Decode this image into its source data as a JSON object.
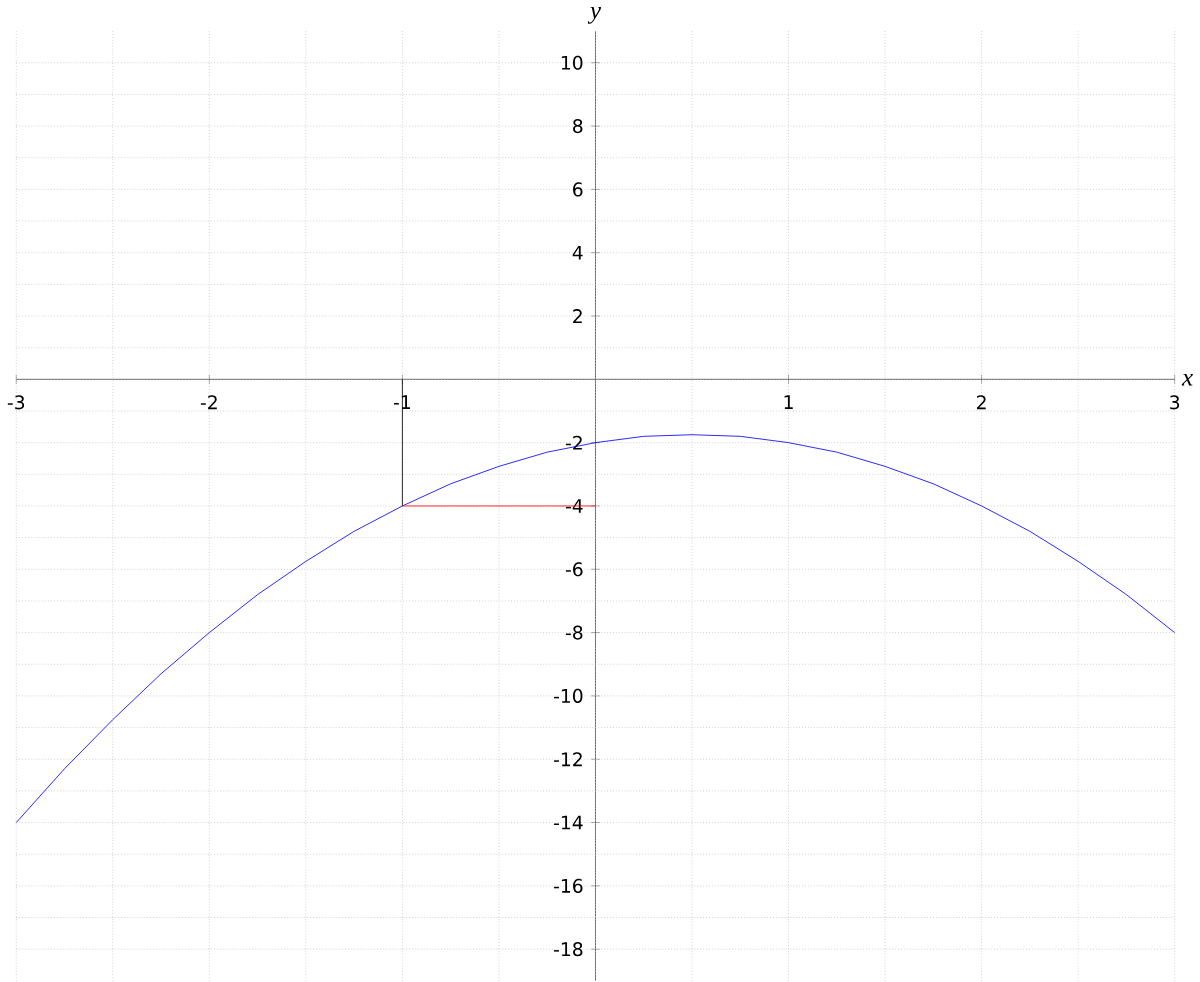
{
  "chart_data": {
    "type": "line",
    "xlabel": "x",
    "ylabel": "y",
    "xlim": [
      -3,
      3
    ],
    "ylim": [
      -19,
      11
    ],
    "xticks": [
      -3,
      {
        "value": -2.5,
        "label": null
      },
      -2,
      {
        "value": -1.5,
        "label": null
      },
      -1,
      {
        "value": -0.5,
        "label": null
      },
      {
        "value": 0,
        "label": null
      },
      {
        "value": 0.5,
        "label": null
      },
      1,
      {
        "value": 1.5,
        "label": null
      },
      2,
      {
        "value": 2.5,
        "label": null
      },
      3
    ],
    "yticks": [
      -18,
      {
        "value": -17,
        "label": null
      },
      -16,
      {
        "value": -15,
        "label": null
      },
      -14,
      {
        "value": -13,
        "label": null
      },
      -12,
      {
        "value": -11,
        "label": null
      },
      -10,
      {
        "value": -9,
        "label": null
      },
      -8,
      {
        "value": -7,
        "label": null
      },
      -6,
      {
        "value": -5,
        "label": null
      },
      -4,
      {
        "value": -3,
        "label": null
      },
      -2,
      {
        "value": -1,
        "label": null
      },
      {
        "value": 0,
        "label": null
      },
      {
        "value": 1,
        "label": null
      },
      2,
      {
        "value": 3,
        "label": null
      },
      4,
      {
        "value": 5,
        "label": null
      },
      6,
      {
        "value": 7,
        "label": null
      },
      8,
      {
        "value": 9,
        "label": null
      },
      10
    ],
    "grid": true,
    "marker": "none",
    "line_style": "solid",
    "series": [
      {
        "color": "#0000ff",
        "x": [
          -3,
          -2.75,
          -2.5,
          -2.25,
          -2,
          -1.75,
          -1.5,
          -1.25,
          -1,
          -0.75,
          -0.5,
          -0.25,
          0,
          0.25,
          0.5,
          0.75,
          1,
          1.25,
          1.5,
          1.75,
          2,
          2.25,
          2.5,
          2.75,
          3
        ],
        "values": [
          -14,
          -12.3,
          -10.75,
          -9.3,
          -8,
          -6.8,
          -5.75,
          -4.8,
          -4,
          -3.3,
          -2.75,
          -2.3,
          -2,
          -1.8,
          -1.75,
          -1.8,
          -2,
          -2.3,
          -2.75,
          -3.3,
          -4,
          -4.8,
          -5.75,
          -6.8,
          -8
        ]
      },
      {
        "color": "#000000",
        "x": [
          -1,
          -1
        ],
        "values": [
          0,
          -4
        ]
      },
      {
        "color": "#ff0000",
        "x": [
          -1,
          0
        ],
        "values": [
          -4,
          -4
        ]
      }
    ]
  }
}
